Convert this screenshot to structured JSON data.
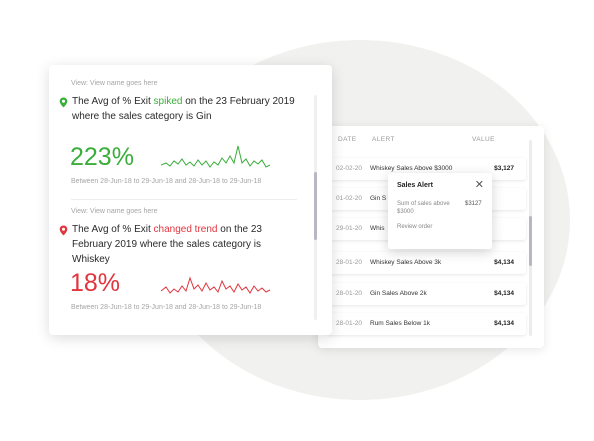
{
  "front_card": {
    "alert1": {
      "view_label": "View: View name goes here",
      "text_before": "The Avg of % Exit ",
      "keyword": "spiked",
      "text_after": " on the 23 February 2019 where the sales category is Gin",
      "value": "223%",
      "between": "Between 28-Jun-18 to 29-Jun-18 and 28-Jun-18 to 29-Jun-18",
      "color": "#3aae3a"
    },
    "alert2": {
      "view_label": "View: View name goes here",
      "text_before": "The Avg of % Exit ",
      "keyword": "changed trend",
      "text_after": "  on the 23 February 2019 where the sales category is Whiskey",
      "value": "18%",
      "between": "Between 28-Jun-18 to 29-Jun-18 and 28-Jun-18 to 29-Jun-18",
      "color": "#e0353d"
    }
  },
  "table_card": {
    "headers": {
      "date": "DATE",
      "alert": "ALERT",
      "value": "VALUE"
    },
    "rows": [
      {
        "date": "02-02-20",
        "alert": "Whiskey Sales Above $3000",
        "value": "$3,127"
      },
      {
        "date": "01-02-20",
        "alert": "Gin S",
        "value": ""
      },
      {
        "date": "29-01-20",
        "alert": "Whis",
        "value": ""
      },
      {
        "date": "28-01-20",
        "alert": "Whiskey Sales Above 3k",
        "value": "$4,134"
      },
      {
        "date": "28-01-20",
        "alert": "Gin Sales Above 2k",
        "value": "$4,134"
      },
      {
        "date": "28-01-20",
        "alert": "Rum Sales Below 1k",
        "value": "$4,134"
      }
    ]
  },
  "popup": {
    "title": "Sales Alert",
    "close_glyph": "✕",
    "description": "Sum of sales above $3000",
    "value": "$3127",
    "action": "Review order"
  }
}
